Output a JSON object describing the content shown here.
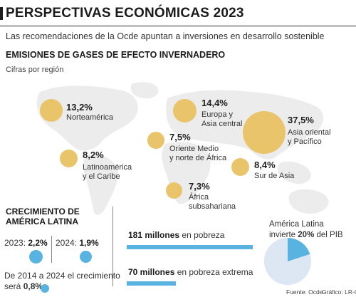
{
  "header": {
    "title": "PERSPECTIVAS ECONÓMICAS 2023",
    "subtitle": "Las recomendaciones de la Ocde apuntan a inversiones en desarrollo sostenible"
  },
  "emissions": {
    "heading": "EMISIONES DE GASES DE EFECTO INVERNADERO",
    "subheading": "Cifras por región",
    "regions": [
      {
        "name_l1": "Norteamérica",
        "name_l2": "",
        "value": "13,2%",
        "share": 13.2
      },
      {
        "name_l1": "Europa y",
        "name_l2": "Asia central",
        "value": "14,4%",
        "share": 14.4
      },
      {
        "name_l1": "Asia oriental",
        "name_l2": "y Pacífico",
        "value": "37,5%",
        "share": 37.5
      },
      {
        "name_l1": "Oriente Medio",
        "name_l2": "y norte de África",
        "value": "7,5%",
        "share": 7.5
      },
      {
        "name_l1": "Latinoamérica",
        "name_l2": "y el Caribe",
        "value": "8,2%",
        "share": 8.2
      },
      {
        "name_l1": "Sur de Asia",
        "name_l2": "",
        "value": "8,4%",
        "share": 8.4
      },
      {
        "name_l1": "África",
        "name_l2": "subsahariana",
        "value": "7,3%",
        "share": 7.3
      }
    ]
  },
  "growth": {
    "title_l1": "CRECIMIENTO DE",
    "title_l2": "AMÉRICA LATINA",
    "y2023_label": "2023:",
    "y2023_value": "2,2%",
    "y2024_label": "2024:",
    "y2024_value": "1,9%",
    "note_l1": "De 2014 a 2024 el crecimiento",
    "note_l2_prefix": "será",
    "note_l2_value": "0,8%"
  },
  "poverty": {
    "row1_value": "181 millones",
    "row1_text": "en pobreza",
    "row2_value": "70 millones",
    "row2_text": "en pobreza extrema"
  },
  "investment": {
    "line1": "América Latina",
    "line2_prefix": "invierte",
    "line2_value": "20%",
    "line2_suffix": "del PIB",
    "share": 20
  },
  "footer": {
    "source": "Fuente: Ocde",
    "credit": "Gráfico: LR-GR"
  },
  "colors": {
    "bubble": "#e9c46a",
    "map_land": "#ececec",
    "accent_blue": "#59b3e1",
    "pie_light": "#dde6f3"
  }
}
